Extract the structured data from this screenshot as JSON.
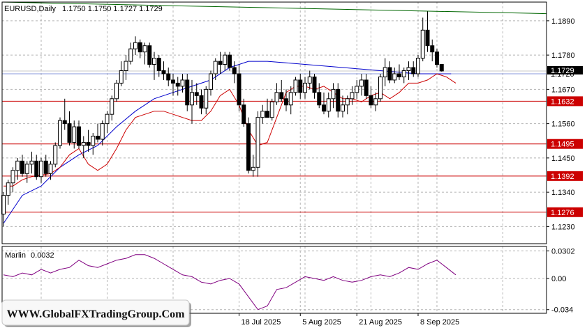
{
  "header": {
    "symbol": "EURUSD,Daily",
    "ohlc": "1.1750 1.1750 1.1727 1.1729"
  },
  "watermark": "WWW.GlobalFXTradingGroup.Com",
  "colors": {
    "bull_body": "#ffffff",
    "bear_body": "#000000",
    "ma_fast": "#cc0000",
    "ma_slow": "#0000cc",
    "ma_long": "#006600",
    "level_line": "#cc0000",
    "bid_line": "#8899dd",
    "oscillator": "#800080"
  },
  "chart_data": [
    {
      "type": "candlestick",
      "title": "EURUSD,Daily",
      "ylim": [
        1.1175,
        1.195
      ],
      "yticks": [
        "1.1890",
        "1.1780",
        "1.1670",
        "1.1560",
        "1.1450",
        "1.1340",
        "1.1230"
      ],
      "xticks": [
        {
          "label": "18 Jul 2025",
          "index": 50
        },
        {
          "label": "5 Aug 2025",
          "index": 63
        },
        {
          "label": "21 Aug 2025",
          "index": 75
        },
        {
          "label": "8 Sep 2025",
          "index": 88
        }
      ],
      "price_labels": [
        {
          "label": "1.1720",
          "value": 1.172,
          "kind": "bid"
        },
        {
          "label": "1.1729",
          "value": 1.1729,
          "kind": "last"
        },
        {
          "label": "1.1632",
          "value": 1.1632,
          "kind": "level"
        },
        {
          "label": "1.1495",
          "value": 1.1495,
          "kind": "level"
        },
        {
          "label": "1.1392",
          "value": 1.1392,
          "kind": "level"
        },
        {
          "label": "1.1276",
          "value": 1.1276,
          "kind": "level"
        }
      ],
      "candles": [
        [
          1.127,
          1.134,
          1.123,
          1.133
        ],
        [
          1.133,
          1.138,
          1.13,
          1.137
        ],
        [
          1.137,
          1.142,
          1.134,
          1.141
        ],
        [
          1.141,
          1.145,
          1.138,
          1.144
        ],
        [
          1.144,
          1.146,
          1.139,
          1.14
        ],
        [
          1.14,
          1.144,
          1.137,
          1.143
        ],
        [
          1.143,
          1.147,
          1.14,
          1.144
        ],
        [
          1.144,
          1.146,
          1.138,
          1.139
        ],
        [
          1.139,
          1.145,
          1.137,
          1.144
        ],
        [
          1.144,
          1.146,
          1.139,
          1.14
        ],
        [
          1.14,
          1.144,
          1.138,
          1.143
        ],
        [
          1.143,
          1.15,
          1.142,
          1.149
        ],
        [
          1.149,
          1.158,
          1.148,
          1.157
        ],
        [
          1.157,
          1.164,
          1.154,
          1.156
        ],
        [
          1.156,
          1.16,
          1.149,
          1.15
        ],
        [
          1.15,
          1.157,
          1.148,
          1.155
        ],
        [
          1.155,
          1.157,
          1.148,
          1.149
        ],
        [
          1.149,
          1.152,
          1.145,
          1.15
        ],
        [
          1.15,
          1.154,
          1.147,
          1.149
        ],
        [
          1.149,
          1.153,
          1.146,
          1.152
        ],
        [
          1.152,
          1.156,
          1.15,
          1.151
        ],
        [
          1.151,
          1.157,
          1.149,
          1.156
        ],
        [
          1.156,
          1.16,
          1.153,
          1.159
        ],
        [
          1.159,
          1.165,
          1.157,
          1.164
        ],
        [
          1.164,
          1.17,
          1.163,
          1.169
        ],
        [
          1.169,
          1.176,
          1.168,
          1.173
        ],
        [
          1.173,
          1.178,
          1.17,
          1.176
        ],
        [
          1.176,
          1.182,
          1.175,
          1.18
        ],
        [
          1.18,
          1.184,
          1.178,
          1.182
        ],
        [
          1.182,
          1.183,
          1.177,
          1.179
        ],
        [
          1.179,
          1.182,
          1.175,
          1.181
        ],
        [
          1.181,
          1.182,
          1.174,
          1.175
        ],
        [
          1.175,
          1.179,
          1.17,
          1.177
        ],
        [
          1.177,
          1.178,
          1.171,
          1.173
        ],
        [
          1.173,
          1.176,
          1.17,
          1.172
        ],
        [
          1.172,
          1.174,
          1.168,
          1.17
        ],
        [
          1.17,
          1.172,
          1.165,
          1.169
        ],
        [
          1.169,
          1.171,
          1.165,
          1.168
        ],
        [
          1.168,
          1.172,
          1.166,
          1.17
        ],
        [
          1.17,
          1.172,
          1.16,
          1.162
        ],
        [
          1.162,
          1.17,
          1.156,
          1.166
        ],
        [
          1.166,
          1.169,
          1.162,
          1.165
        ],
        [
          1.165,
          1.167,
          1.159,
          1.161
        ],
        [
          1.161,
          1.168,
          1.159,
          1.167
        ],
        [
          1.167,
          1.173,
          1.165,
          1.172
        ],
        [
          1.172,
          1.177,
          1.17,
          1.176
        ],
        [
          1.176,
          1.179,
          1.172,
          1.175
        ],
        [
          1.175,
          1.179,
          1.173,
          1.178
        ],
        [
          1.178,
          1.179,
          1.173,
          1.174
        ],
        [
          1.174,
          1.176,
          1.169,
          1.172
        ],
        [
          1.172,
          1.175,
          1.16,
          1.162
        ],
        [
          1.162,
          1.164,
          1.155,
          1.156
        ],
        [
          1.156,
          1.158,
          1.14,
          1.141
        ],
        [
          1.141,
          1.146,
          1.139,
          1.142
        ],
        [
          1.142,
          1.16,
          1.139,
          1.158
        ],
        [
          1.158,
          1.162,
          1.156,
          1.16
        ],
        [
          1.16,
          1.164,
          1.158,
          1.158
        ],
        [
          1.158,
          1.164,
          1.157,
          1.163
        ],
        [
          1.163,
          1.169,
          1.162,
          1.166
        ],
        [
          1.166,
          1.17,
          1.163,
          1.164
        ],
        [
          1.164,
          1.167,
          1.16,
          1.162
        ],
        [
          1.162,
          1.168,
          1.159,
          1.166
        ],
        [
          1.166,
          1.171,
          1.165,
          1.17
        ],
        [
          1.17,
          1.172,
          1.164,
          1.166
        ],
        [
          1.166,
          1.171,
          1.164,
          1.169
        ],
        [
          1.169,
          1.173,
          1.167,
          1.171
        ],
        [
          1.171,
          1.172,
          1.164,
          1.166
        ],
        [
          1.166,
          1.169,
          1.161,
          1.162
        ],
        [
          1.162,
          1.166,
          1.159,
          1.16
        ],
        [
          1.16,
          1.166,
          1.158,
          1.164
        ],
        [
          1.164,
          1.169,
          1.161,
          1.167
        ],
        [
          1.167,
          1.169,
          1.158,
          1.16
        ],
        [
          1.16,
          1.165,
          1.158,
          1.162
        ],
        [
          1.162,
          1.165,
          1.159,
          1.164
        ],
        [
          1.164,
          1.168,
          1.162,
          1.166
        ],
        [
          1.166,
          1.17,
          1.164,
          1.168
        ],
        [
          1.168,
          1.172,
          1.165,
          1.17
        ],
        [
          1.17,
          1.172,
          1.164,
          1.165
        ],
        [
          1.165,
          1.168,
          1.161,
          1.162
        ],
        [
          1.162,
          1.166,
          1.16,
          1.164
        ],
        [
          1.164,
          1.172,
          1.163,
          1.171
        ],
        [
          1.171,
          1.177,
          1.168,
          1.174
        ],
        [
          1.174,
          1.176,
          1.169,
          1.17
        ],
        [
          1.17,
          1.174,
          1.169,
          1.172
        ],
        [
          1.172,
          1.175,
          1.17,
          1.171
        ],
        [
          1.171,
          1.174,
          1.169,
          1.173
        ],
        [
          1.173,
          1.176,
          1.17,
          1.174
        ],
        [
          1.174,
          1.176,
          1.171,
          1.172
        ],
        [
          1.172,
          1.178,
          1.171,
          1.177
        ],
        [
          1.177,
          1.19,
          1.176,
          1.186
        ],
        [
          1.186,
          1.192,
          1.179,
          1.181
        ],
        [
          1.181,
          1.183,
          1.176,
          1.179
        ],
        [
          1.179,
          1.18,
          1.174,
          1.175
        ],
        [
          1.175,
          1.175,
          1.1727,
          1.1729
        ]
      ],
      "ma_fast": [
        [
          0,
          1.136
        ],
        [
          2,
          1.136
        ],
        [
          4,
          1.138
        ],
        [
          6,
          1.139
        ],
        [
          8,
          1.1395
        ],
        [
          10,
          1.14
        ],
        [
          12,
          1.142
        ],
        [
          14,
          1.146
        ],
        [
          16,
          1.148
        ],
        [
          18,
          1.143
        ],
        [
          20,
          1.141
        ],
        [
          22,
          1.143
        ],
        [
          24,
          1.148
        ],
        [
          26,
          1.154
        ],
        [
          28,
          1.158
        ],
        [
          30,
          1.159
        ],
        [
          32,
          1.16
        ],
        [
          34,
          1.16
        ],
        [
          36,
          1.159
        ],
        [
          38,
          1.158
        ],
        [
          40,
          1.157
        ],
        [
          42,
          1.157
        ],
        [
          44,
          1.16
        ],
        [
          46,
          1.165
        ],
        [
          48,
          1.167
        ],
        [
          50,
          1.162
        ],
        [
          52,
          1.154
        ],
        [
          54,
          1.149
        ],
        [
          56,
          1.15
        ],
        [
          58,
          1.158
        ],
        [
          60,
          1.166
        ],
        [
          62,
          1.168
        ],
        [
          64,
          1.168
        ],
        [
          66,
          1.167
        ],
        [
          68,
          1.168
        ],
        [
          70,
          1.166
        ],
        [
          72,
          1.164
        ],
        [
          74,
          1.164
        ],
        [
          76,
          1.163
        ],
        [
          78,
          1.165
        ],
        [
          80,
          1.166
        ],
        [
          82,
          1.164
        ],
        [
          84,
          1.166
        ],
        [
          86,
          1.169
        ],
        [
          88,
          1.169
        ],
        [
          90,
          1.17
        ],
        [
          92,
          1.172
        ],
        [
          94,
          1.171
        ],
        [
          96,
          1.169
        ]
      ],
      "ma_slow": [
        [
          0,
          1.124
        ],
        [
          4,
          1.133
        ],
        [
          8,
          1.136
        ],
        [
          12,
          1.142
        ],
        [
          16,
          1.146
        ],
        [
          20,
          1.149
        ],
        [
          24,
          1.155
        ],
        [
          28,
          1.16
        ],
        [
          32,
          1.164
        ],
        [
          36,
          1.166
        ],
        [
          40,
          1.168
        ],
        [
          44,
          1.17
        ],
        [
          48,
          1.174
        ],
        [
          52,
          1.176
        ],
        [
          56,
          1.176
        ],
        [
          60,
          1.1755
        ],
        [
          64,
          1.175
        ],
        [
          68,
          1.1745
        ],
        [
          72,
          1.174
        ],
        [
          76,
          1.1735
        ],
        [
          80,
          1.173
        ],
        [
          84,
          1.1725
        ],
        [
          88,
          1.172
        ],
        [
          92,
          1.172
        ],
        [
          95,
          1.172
        ]
      ],
      "ma_long": [
        [
          0,
          1.195
        ],
        [
          97,
          1.1913
        ]
      ],
      "oscillator": {
        "label": "Marlin",
        "current": "0.0032",
        "yticks": [
          "0.0302",
          "0.00",
          "-0.034"
        ],
        "ylim": [
          -0.038,
          0.035
        ],
        "points": [
          [
            0,
            0.004
          ],
          [
            2,
            0.002
          ],
          [
            4,
            0.006
          ],
          [
            6,
            0.004
          ],
          [
            8,
            0.01
          ],
          [
            10,
            0.006
          ],
          [
            12,
            0.01
          ],
          [
            14,
            0.012
          ],
          [
            16,
            0.02
          ],
          [
            18,
            0.014
          ],
          [
            20,
            0.012
          ],
          [
            22,
            0.016
          ],
          [
            24,
            0.02
          ],
          [
            26,
            0.022
          ],
          [
            28,
            0.026
          ],
          [
            30,
            0.026
          ],
          [
            32,
            0.022
          ],
          [
            34,
            0.016
          ],
          [
            36,
            0.01
          ],
          [
            38,
            0.004
          ],
          [
            40,
            0.002
          ],
          [
            42,
            -0.004
          ],
          [
            44,
            -0.006
          ],
          [
            46,
            -0.002
          ],
          [
            48,
            0.0
          ],
          [
            50,
            -0.006
          ],
          [
            52,
            -0.02
          ],
          [
            54,
            -0.034
          ],
          [
            56,
            -0.03
          ],
          [
            58,
            -0.012
          ],
          [
            60,
            -0.01
          ],
          [
            62,
            -0.004
          ],
          [
            64,
            0.002
          ],
          [
            66,
            0.0
          ],
          [
            68,
            -0.002
          ],
          [
            70,
            0.002
          ],
          [
            72,
            -0.002
          ],
          [
            74,
            -0.004
          ],
          [
            76,
            -0.002
          ],
          [
            78,
            0.002
          ],
          [
            80,
            0.004
          ],
          [
            82,
            0.002
          ],
          [
            84,
            0.006
          ],
          [
            86,
            0.012
          ],
          [
            88,
            0.01
          ],
          [
            90,
            0.016
          ],
          [
            92,
            0.02
          ],
          [
            94,
            0.012
          ],
          [
            96,
            0.004
          ]
        ]
      }
    }
  ]
}
